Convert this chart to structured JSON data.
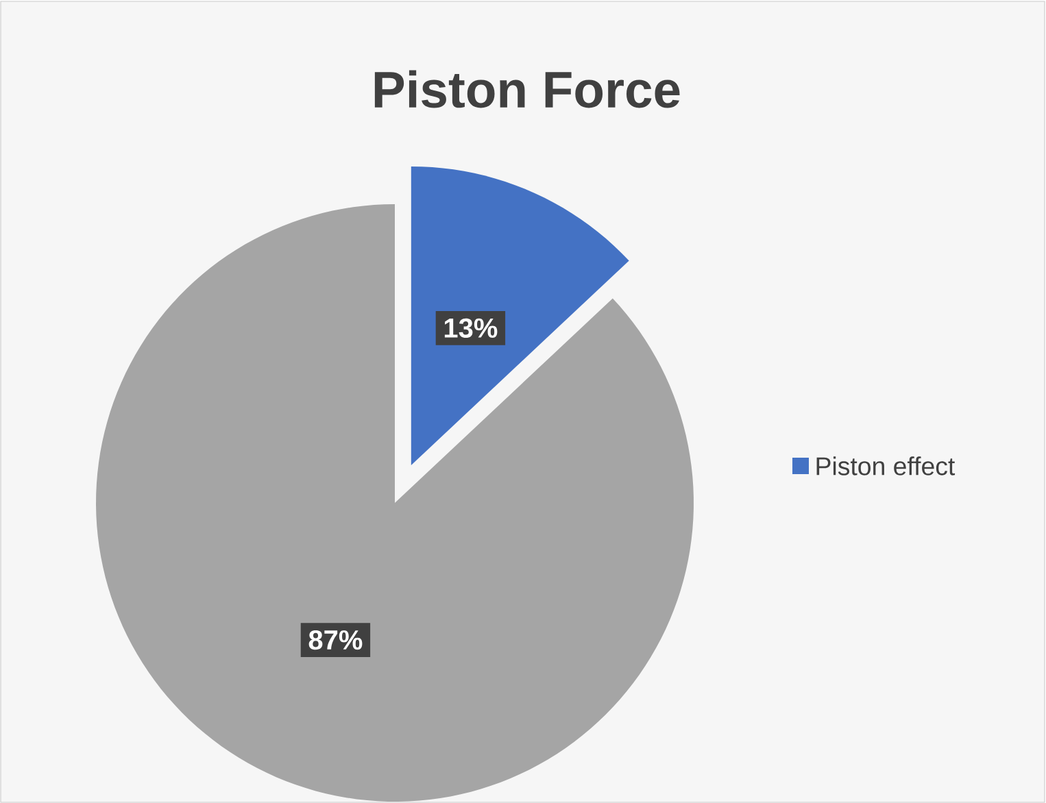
{
  "chart_data": {
    "type": "pie",
    "title": "Piston Force",
    "categories": [
      "Piston effect",
      null
    ],
    "values": [
      13,
      87
    ],
    "colors": [
      "#4472c4",
      "#a5a5a5"
    ],
    "value_labels": [
      "13%",
      "87%"
    ],
    "legend": "right"
  }
}
